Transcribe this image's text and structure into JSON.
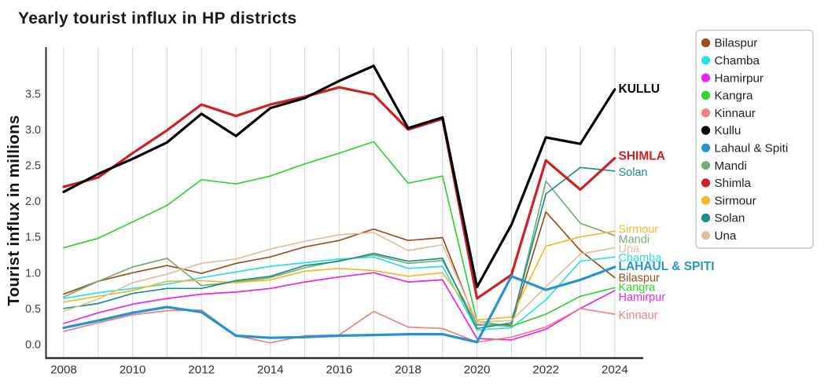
{
  "title": "Yearly tourist influx in HP districts",
  "chart_data": {
    "type": "line",
    "title": "Yearly tourist influx in HP districts",
    "xlabel": "",
    "ylabel": "Tourist influx in millions",
    "x": [
      2008,
      2009,
      2010,
      2011,
      2012,
      2013,
      2014,
      2015,
      2016,
      2017,
      2018,
      2019,
      2020,
      2021,
      2022,
      2023,
      2024
    ],
    "xticks": [
      "2008",
      "2010",
      "2012",
      "2014",
      "2016",
      "2018",
      "2020",
      "2022",
      "2024"
    ],
    "yticks": [
      "0.0",
      "0.5",
      "1.0",
      "1.5",
      "2.0",
      "2.5",
      "3.0",
      "3.5"
    ],
    "ylim": [
      -0.2,
      4.15
    ],
    "grid": "vertical-gridlines-every-year",
    "legend_position": "upper-right",
    "colors": {
      "title_text": "#1a1a1a",
      "axis_spine": "#2d2d2d",
      "gridline": "#d9d9d9",
      "tick_label": "#404040",
      "legend_border": "#c9c9c9",
      "legend_text": "#1f1f1f",
      "background": "#ffffff"
    },
    "series": [
      {
        "name": "Bilaspur",
        "color": "#9c4e1e",
        "thick": false,
        "label": "Bilaspur",
        "label_bold": false,
        "label_value": 0.93,
        "values": [
          0.7,
          0.88,
          1.0,
          1.1,
          0.99,
          1.13,
          1.22,
          1.36,
          1.45,
          1.61,
          1.45,
          1.49,
          0.27,
          0.27,
          1.85,
          1.31,
          0.93
        ]
      },
      {
        "name": "Chamba",
        "color": "#2adee8",
        "thick": false,
        "label": "Chamba",
        "label_bold": false,
        "label_value": 1.21,
        "values": [
          0.64,
          0.72,
          0.78,
          0.84,
          0.93,
          1.01,
          1.09,
          1.14,
          1.19,
          1.22,
          1.06,
          1.09,
          0.2,
          0.23,
          0.62,
          1.16,
          1.22
        ]
      },
      {
        "name": "Hamirpur",
        "color": "#ea25ea",
        "thick": false,
        "label": "Hamirpur",
        "label_bold": false,
        "label_value": 0.66,
        "values": [
          0.29,
          0.44,
          0.56,
          0.64,
          0.7,
          0.73,
          0.78,
          0.87,
          0.94,
          1.0,
          0.87,
          0.9,
          0.08,
          0.06,
          0.21,
          0.5,
          0.75
        ]
      },
      {
        "name": "Kangra",
        "color": "#30d330",
        "thick": false,
        "label": "Kangra",
        "label_bold": false,
        "label_value": 0.8,
        "values": [
          1.35,
          1.48,
          1.71,
          1.94,
          2.3,
          2.24,
          2.35,
          2.52,
          2.67,
          2.83,
          2.25,
          2.35,
          0.32,
          0.25,
          0.42,
          0.67,
          0.79
        ]
      },
      {
        "name": "Kinnaur",
        "color": "#f08080",
        "thick": false,
        "label": "Kinnaur",
        "label_bold": false,
        "label_value": 0.41,
        "values": [
          0.18,
          0.3,
          0.41,
          0.47,
          0.48,
          0.12,
          0.02,
          0.12,
          0.13,
          0.46,
          0.24,
          0.22,
          0.03,
          0.1,
          0.24,
          0.5,
          0.42
        ]
      },
      {
        "name": "Mandi",
        "color": "#78ac78",
        "thick": false,
        "label": "Mandi",
        "label_bold": false,
        "label_value": 1.47,
        "values": [
          0.66,
          0.88,
          1.08,
          1.2,
          0.82,
          0.87,
          0.93,
          1.07,
          1.17,
          1.25,
          1.13,
          1.17,
          0.28,
          0.25,
          2.28,
          1.69,
          1.52
        ]
      },
      {
        "name": "Sirmour",
        "color": "#ecbc2e",
        "thick": false,
        "label": "Sirmour",
        "label_bold": false,
        "label_value": 1.61,
        "values": [
          0.59,
          0.67,
          0.75,
          0.88,
          0.89,
          0.86,
          0.9,
          1.02,
          1.06,
          1.03,
          0.95,
          1.0,
          0.34,
          0.38,
          1.37,
          1.5,
          1.58
        ]
      },
      {
        "name": "Solan",
        "color": "#1d9086",
        "thick": false,
        "label": "Solan",
        "label_bold": false,
        "label_value": 2.41,
        "values": [
          0.5,
          0.57,
          0.71,
          0.78,
          0.78,
          0.89,
          0.95,
          1.1,
          1.16,
          1.27,
          1.16,
          1.2,
          0.22,
          0.3,
          2.1,
          2.47,
          2.42
        ]
      },
      {
        "name": "Una",
        "color": "#dfbf9d",
        "thick": false,
        "label": "Una",
        "label_bold": false,
        "label_value": 1.34,
        "values": [
          0.46,
          0.63,
          0.86,
          0.98,
          1.13,
          1.19,
          1.33,
          1.44,
          1.53,
          1.56,
          1.31,
          1.39,
          0.31,
          0.33,
          0.8,
          1.26,
          1.35
        ]
      },
      {
        "name": "Shimla",
        "color": "#cd2125",
        "thick": true,
        "label": "SHIMLA",
        "label_bold": true,
        "label_value": 2.63,
        "values": [
          2.2,
          2.33,
          2.67,
          2.99,
          3.35,
          3.19,
          3.35,
          3.46,
          3.59,
          3.49,
          3.0,
          3.15,
          0.64,
          0.97,
          2.57,
          2.16,
          2.6
        ]
      },
      {
        "name": "Kullu",
        "color": "#000000",
        "thick": true,
        "label": "KULLU",
        "label_bold": true,
        "label_value": 3.57,
        "values": [
          2.13,
          2.38,
          2.59,
          2.82,
          3.22,
          2.91,
          3.3,
          3.44,
          3.68,
          3.89,
          3.02,
          3.17,
          0.8,
          1.67,
          2.89,
          2.8,
          3.56
        ]
      },
      {
        "name": "Lahaul & Spiti",
        "color": "#2794cf",
        "thick": true,
        "label": "LAHAUL & SPITI",
        "label_bold": true,
        "label_value": 1.09,
        "values": [
          0.23,
          0.33,
          0.44,
          0.52,
          0.45,
          0.12,
          0.09,
          0.1,
          0.12,
          0.13,
          0.14,
          0.14,
          0.03,
          0.95,
          0.76,
          0.9,
          1.08
        ]
      }
    ],
    "legend": [
      {
        "name": "Bilaspur",
        "color": "#9c4e1e"
      },
      {
        "name": "Chamba",
        "color": "#2adee8"
      },
      {
        "name": "Hamirpur",
        "color": "#ea25ea"
      },
      {
        "name": "Kangra",
        "color": "#30d330"
      },
      {
        "name": "Kinnaur",
        "color": "#f08080"
      },
      {
        "name": "Kullu",
        "color": "#000000"
      },
      {
        "name": "Lahaul & Spiti",
        "color": "#2794cf"
      },
      {
        "name": "Mandi",
        "color": "#78ac78"
      },
      {
        "name": "Shimla",
        "color": "#cd2125"
      },
      {
        "name": "Sirmour",
        "color": "#ecbc2e"
      },
      {
        "name": "Solan",
        "color": "#1d9086"
      },
      {
        "name": "Una",
        "color": "#dfbf9d"
      }
    ]
  }
}
